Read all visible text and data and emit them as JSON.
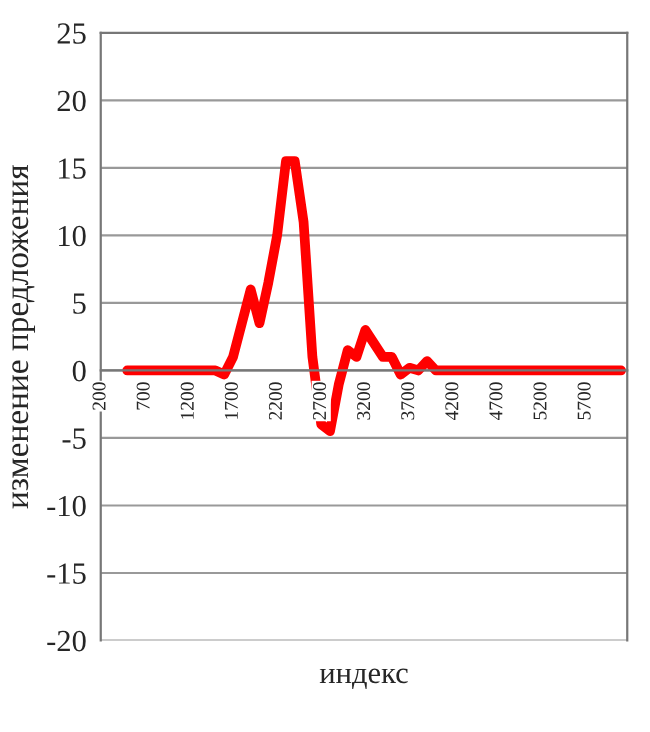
{
  "chart_data": {
    "type": "line",
    "xlabel": "индекс",
    "ylabel": "изменение предложения",
    "x": [
      500,
      600,
      700,
      800,
      900,
      1000,
      1100,
      1200,
      1300,
      1400,
      1500,
      1600,
      1700,
      1800,
      1900,
      2000,
      2100,
      2200,
      2300,
      2400,
      2500,
      2600,
      2700,
      2800,
      2900,
      3000,
      3100,
      3200,
      3300,
      3400,
      3500,
      3600,
      3700,
      3800,
      3900,
      4000,
      4100,
      4200,
      4300,
      4400,
      4500,
      4600,
      4700,
      4800,
      4900,
      5000,
      5100,
      5200,
      5300,
      5400,
      5500,
      5600,
      5700,
      5800,
      5900,
      6000,
      6100
    ],
    "series": [
      {
        "color": "#ff0000",
        "values": [
          0,
          0,
          0,
          0,
          0,
          0,
          0,
          0,
          0,
          0,
          0,
          -0.3,
          1,
          3.5,
          6,
          3.5,
          6.5,
          10,
          15.5,
          15.5,
          11,
          1,
          -4,
          -4.5,
          -1,
          1.5,
          1,
          3,
          2,
          1,
          1,
          -0.3,
          0.2,
          0,
          0.7,
          0,
          0,
          0,
          0,
          0,
          0,
          0,
          0,
          0,
          0,
          0,
          0,
          0,
          0,
          0,
          0,
          0,
          0,
          0,
          0,
          0,
          0
        ]
      }
    ],
    "xlim": [
      200,
      6170
    ],
    "xticks": [
      200,
      700,
      1200,
      1700,
      2200,
      2700,
      3200,
      3700,
      4200,
      4700,
      5200,
      5700
    ],
    "ylim": [
      -20,
      25
    ],
    "yticks": [
      -20,
      -15,
      -10,
      -5,
      0,
      5,
      10,
      15,
      20,
      25
    ],
    "grid": "y",
    "legend": false,
    "marker": "none",
    "line_style": "solid"
  }
}
